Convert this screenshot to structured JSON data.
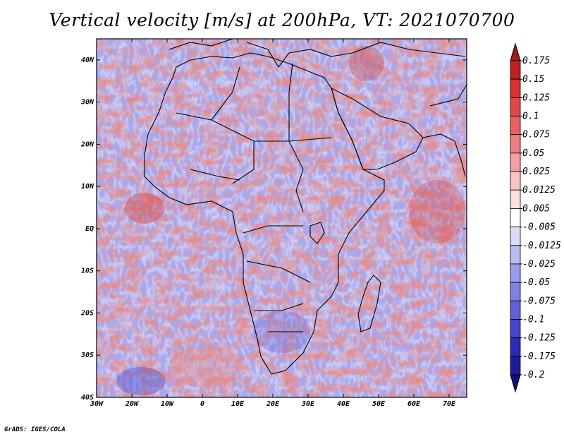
{
  "title": "Vertical velocity [m/s] at 200hPa, VT: 2021070700",
  "footer": "GrADS: IGES/COLA",
  "map": {
    "lon_range": [
      -30,
      75
    ],
    "lat_range": [
      -40,
      45
    ],
    "x_ticks": [
      "30W",
      "20W",
      "10W",
      "0",
      "10E",
      "20E",
      "30E",
      "40E",
      "50E",
      "60E",
      "70E"
    ],
    "y_ticks": [
      "40N",
      "30N",
      "20N",
      "10N",
      "EQ",
      "10S",
      "20S",
      "30S",
      "40S"
    ],
    "field_colors": {
      "positive": "#e0736c",
      "negative": "#7f7fe8",
      "neutral": "#ffffff"
    }
  },
  "colorbar": {
    "labels": [
      "0.175",
      "0.15",
      "0.125",
      "0.1",
      "0.075",
      "0.05",
      "0.025",
      "0.0125",
      "0.005",
      "-0.005",
      "-0.0125",
      "-0.025",
      "-0.05",
      "-0.075",
      "-0.1",
      "-0.125",
      "-0.175",
      "-0.2"
    ],
    "colors": [
      "#a01818",
      "#c02020",
      "#d83030",
      "#e04848",
      "#e86060",
      "#ef7f7f",
      "#f4a0a0",
      "#f8c4c4",
      "#fbe0e0",
      "#ffffff",
      "#dcdcfa",
      "#bcbcf4",
      "#9c9cee",
      "#8080e6",
      "#6060dc",
      "#4646cc",
      "#2a2ab8",
      "#1c1c98",
      "#10107a"
    ]
  }
}
